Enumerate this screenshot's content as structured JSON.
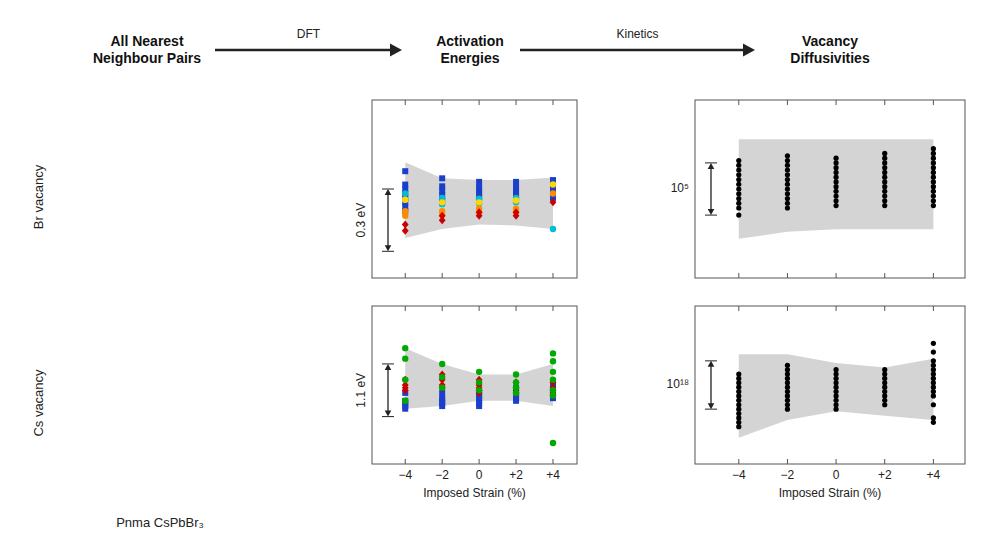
{
  "chart_data": [
    {
      "type": "scatter",
      "title": "Activation\nEnergies",
      "annotations": [
        {
          "text": "All Nearest\nNeighbour Pairs"
        },
        {
          "text": "DFT"
        },
        {
          "text": "Br vacancy"
        },
        {
          "text": "0.3 eV",
          "y_top": 0.335,
          "y_bottom": 0.265
        }
      ],
      "xlim": [
        -5.8,
        5.3
      ],
      "xticks": [
        {
          "value": -4,
          "label": "−4"
        },
        {
          "value": -2,
          "label": "−2"
        },
        0,
        {
          "value": 2,
          "label": "+2"
        },
        {
          "value": 4,
          "label": "+4"
        }
      ],
      "ylim": [
        0.235,
        0.435
      ],
      "tick_labels": false,
      "series": [
        {
          "type": "area",
          "color": "#cccccc",
          "x": [
            -4,
            -2,
            0,
            2,
            4
          ],
          "lower": [
            0.28,
            0.29,
            0.295,
            0.294,
            0.29
          ],
          "upper": [
            0.365,
            0.347,
            0.345,
            0.345,
            0.348
          ]
        },
        {
          "type": "scatter",
          "color": "#1a3fcc",
          "marker": "square",
          "x": [
            -4,
            -4,
            -4,
            -4,
            -4,
            -4,
            -4,
            -4,
            -2,
            -2,
            -2,
            -2,
            -2,
            0,
            0,
            0,
            0,
            0,
            2,
            2,
            2,
            2,
            2,
            4,
            4,
            4,
            4,
            4
          ],
          "values": [
            0.355,
            0.34,
            0.335,
            0.33,
            0.325,
            0.32,
            0.315,
            0.31,
            0.347,
            0.338,
            0.333,
            0.328,
            0.322,
            0.343,
            0.337,
            0.333,
            0.329,
            0.325,
            0.343,
            0.337,
            0.333,
            0.329,
            0.325,
            0.345,
            0.34,
            0.335,
            0.33,
            0.325
          ]
        },
        {
          "type": "scatter",
          "color": "#00bcd4",
          "marker": "circle",
          "x": [
            -4,
            -4,
            -2,
            -2,
            0,
            0,
            2,
            2,
            4
          ],
          "values": [
            0.33,
            0.323,
            0.325,
            0.318,
            0.324,
            0.319,
            0.325,
            0.32,
            0.29
          ]
        },
        {
          "type": "scatter",
          "color": "#ffd700",
          "marker": "circle",
          "x": [
            -4,
            -2,
            0,
            2,
            4
          ],
          "values": [
            0.323,
            0.32,
            0.32,
            0.322,
            0.34
          ]
        },
        {
          "type": "scatter",
          "color": "#ff8c00",
          "marker": "circle",
          "x": [
            -4,
            -4,
            -2,
            -2,
            0,
            0,
            2,
            2,
            4
          ],
          "values": [
            0.31,
            0.305,
            0.31,
            0.306,
            0.313,
            0.309,
            0.313,
            0.309,
            0.33
          ]
        },
        {
          "type": "scatter",
          "color": "#cc0000",
          "marker": "diamond",
          "x": [
            -4,
            -4,
            -2,
            -2,
            0,
            0,
            2,
            2,
            4
          ],
          "values": [
            0.295,
            0.288,
            0.305,
            0.3,
            0.309,
            0.305,
            0.309,
            0.305,
            0.32
          ]
        }
      ]
    },
    {
      "type": "scatter",
      "xlabel": "Imposed Strain (%)",
      "annotations": [
        {
          "text": "Cs vacancy"
        },
        {
          "text": "Pnma CsPbBr₃"
        },
        {
          "text": "1.1 eV",
          "y_top": 1.2,
          "y_bottom": 1.0
        }
      ],
      "xlim": [
        -5.8,
        5.3
      ],
      "xticks": [
        {
          "value": -4,
          "label": "−4"
        },
        {
          "value": -2,
          "label": "−2"
        },
        0,
        {
          "value": 2,
          "label": "+2"
        },
        {
          "value": 4,
          "label": "+4"
        }
      ],
      "ylim": [
        0.82,
        1.42
      ],
      "tick_labels": "x",
      "series": [
        {
          "type": "area",
          "color": "#cccccc",
          "x": [
            -4,
            -2,
            0,
            2,
            4
          ],
          "lower": [
            1.03,
            1.04,
            1.06,
            1.06,
            1.04
          ],
          "upper": [
            1.26,
            1.2,
            1.16,
            1.16,
            1.2
          ]
        },
        {
          "type": "scatter",
          "color": "#1a3fcc",
          "marker": "square",
          "x": [
            -4,
            -4,
            -4,
            -4,
            -4,
            -2,
            -2,
            -2,
            -2,
            -2,
            0,
            0,
            0,
            0,
            0,
            0,
            2,
            2,
            2,
            2,
            2,
            4,
            4,
            4,
            4,
            4
          ],
          "values": [
            1.09,
            1.06,
            1.05,
            1.04,
            1.03,
            1.09,
            1.07,
            1.06,
            1.05,
            1.04,
            1.09,
            1.08,
            1.07,
            1.06,
            1.05,
            1.04,
            1.11,
            1.09,
            1.08,
            1.07,
            1.06,
            1.12,
            1.1,
            1.09,
            1.08,
            1.07
          ]
        },
        {
          "type": "scatter",
          "color": "#cc0000",
          "marker": "diamond",
          "x": [
            -4,
            -4,
            -4,
            -4,
            -2,
            -2,
            -2,
            -2,
            0,
            0,
            0,
            0,
            0,
            2,
            2,
            2,
            2,
            4,
            4,
            4,
            4,
            4
          ],
          "values": [
            1.14,
            1.12,
            1.11,
            1.1,
            1.16,
            1.14,
            1.12,
            1.11,
            1.14,
            1.12,
            1.11,
            1.1,
            1.09,
            1.13,
            1.11,
            1.1,
            1.09,
            1.13,
            1.11,
            1.1,
            1.09,
            1.08
          ]
        },
        {
          "type": "scatter",
          "color": "#00aa00",
          "marker": "circle",
          "x": [
            -4,
            -4,
            -4,
            -4,
            -2,
            -2,
            -2,
            0,
            0,
            0,
            2,
            2,
            2,
            2,
            4,
            4,
            4,
            4,
            4,
            4,
            4
          ],
          "values": [
            1.26,
            1.22,
            1.14,
            1.06,
            1.2,
            1.15,
            1.11,
            1.17,
            1.13,
            1.1,
            1.16,
            1.13,
            1.11,
            1.09,
            1.24,
            1.21,
            1.17,
            1.14,
            1.1,
            1.08,
            0.9
          ]
        }
      ]
    },
    {
      "type": "scatter",
      "title": "Vacancy\nDiffusivities",
      "annotations": [
        {
          "text": "Kinetics"
        },
        {
          "text": "10⁵",
          "y_top": 5.22,
          "y_bottom": 4.78
        }
      ],
      "xlim": [
        -5.8,
        5.3
      ],
      "xticks": [
        {
          "value": -4,
          "label": "−4"
        },
        {
          "value": -2,
          "label": "−2"
        },
        0,
        {
          "value": 2,
          "label": "+2"
        },
        {
          "value": 4,
          "label": "+4"
        }
      ],
      "ylim": [
        4.25,
        5.75
      ],
      "tick_labels": false,
      "series": [
        {
          "type": "area",
          "color": "#cccccc",
          "x": [
            -4,
            -2,
            0,
            2,
            4
          ],
          "lower": [
            4.58,
            4.64,
            4.66,
            4.66,
            4.66
          ],
          "upper": [
            5.42,
            5.42,
            5.42,
            5.42,
            5.42
          ]
        },
        {
          "type": "scatter",
          "color": "#000000",
          "marker": "circle",
          "x": [
            -4,
            -4,
            -4,
            -4,
            -4,
            -4,
            -4,
            -4,
            -4,
            -4,
            -4,
            -4,
            -2,
            -2,
            -2,
            -2,
            -2,
            -2,
            -2,
            -2,
            -2,
            -2,
            -2,
            -2,
            0,
            0,
            0,
            0,
            0,
            0,
            0,
            0,
            0,
            0,
            0,
            2,
            2,
            2,
            2,
            2,
            2,
            2,
            2,
            2,
            2,
            2,
            2,
            4,
            4,
            4,
            4,
            4,
            4,
            4,
            4,
            4,
            4,
            4,
            4,
            4
          ],
          "values": [
            4.78,
            4.84,
            4.88,
            4.92,
            4.96,
            5.0,
            5.04,
            5.08,
            5.12,
            5.16,
            5.2,
            5.24,
            4.84,
            4.88,
            4.92,
            4.96,
            5.0,
            5.04,
            5.08,
            5.12,
            5.16,
            5.2,
            5.24,
            5.28,
            4.86,
            4.9,
            4.94,
            4.98,
            5.02,
            5.06,
            5.1,
            5.14,
            5.18,
            5.22,
            5.26,
            4.86,
            4.9,
            4.94,
            4.98,
            5.02,
            5.06,
            5.1,
            5.14,
            5.18,
            5.22,
            5.26,
            5.3,
            4.86,
            4.9,
            4.94,
            4.98,
            5.02,
            5.06,
            5.1,
            5.14,
            5.18,
            5.22,
            5.26,
            5.3,
            5.34
          ]
        }
      ]
    },
    {
      "type": "scatter",
      "xlabel": "Imposed Strain (%)",
      "annotations": [
        {
          "text": "10¹⁸",
          "y_top": 18.55,
          "y_bottom": 17.45
        }
      ],
      "xlim": [
        -5.8,
        5.3
      ],
      "xticks": [
        {
          "value": -4,
          "label": "−4"
        },
        {
          "value": -2,
          "label": "−2"
        },
        0,
        {
          "value": 2,
          "label": "+2"
        },
        {
          "value": 4,
          "label": "+4"
        }
      ],
      "ylim": [
        16.2,
        19.8
      ],
      "tick_labels": "x",
      "series": [
        {
          "type": "area",
          "color": "#cccccc",
          "x": [
            -4,
            -2,
            0,
            2,
            4
          ],
          "lower": [
            16.8,
            17.2,
            17.4,
            17.3,
            17.2
          ],
          "upper": [
            18.7,
            18.7,
            18.5,
            18.4,
            18.6
          ]
        },
        {
          "type": "scatter",
          "color": "#000000",
          "marker": "circle",
          "x": [
            -4,
            -4,
            -4,
            -4,
            -4,
            -4,
            -4,
            -4,
            -4,
            -4,
            -4,
            -4,
            -4,
            -2,
            -2,
            -2,
            -2,
            -2,
            -2,
            -2,
            -2,
            -2,
            -2,
            -2,
            0,
            0,
            0,
            0,
            0,
            0,
            0,
            0,
            0,
            0,
            2,
            2,
            2,
            2,
            2,
            2,
            2,
            2,
            2,
            4,
            4,
            4,
            4,
            4,
            4,
            4,
            4,
            4,
            4,
            4,
            4,
            4,
            4
          ],
          "values": [
            18.25,
            18.15,
            18.05,
            17.95,
            17.85,
            17.75,
            17.65,
            17.55,
            17.45,
            17.35,
            17.25,
            17.15,
            17.05,
            18.45,
            18.35,
            18.25,
            18.15,
            18.05,
            17.95,
            17.85,
            17.75,
            17.65,
            17.55,
            17.45,
            18.35,
            18.25,
            18.15,
            18.05,
            17.95,
            17.85,
            17.75,
            17.65,
            17.55,
            17.45,
            18.35,
            18.25,
            18.15,
            18.05,
            17.95,
            17.85,
            17.75,
            17.65,
            17.55,
            18.95,
            18.75,
            18.55,
            18.45,
            18.35,
            18.25,
            18.15,
            18.05,
            17.95,
            17.85,
            17.75,
            17.55,
            17.25,
            17.15
          ]
        }
      ]
    }
  ]
}
